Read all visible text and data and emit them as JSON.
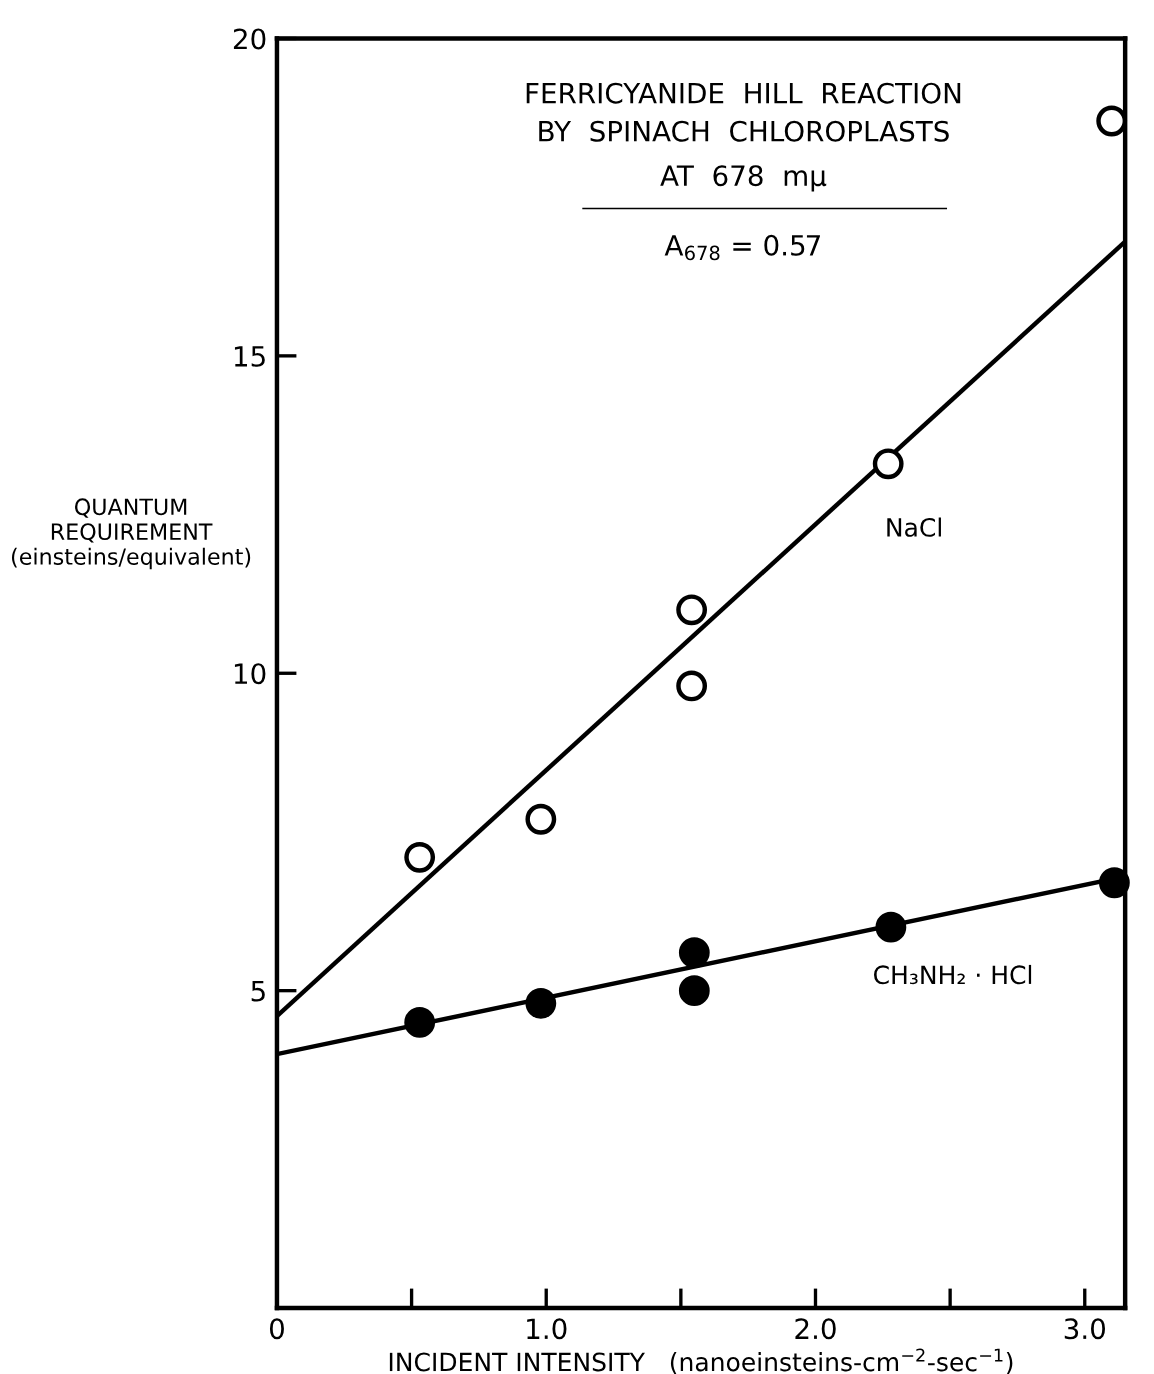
{
  "chart_data": {
    "type": "scatter",
    "xlabel": "INCIDENT INTENSITY   (nanoeinsteins-cm$^{−2}$-sec$^{−1}$)",
    "ylabel": "QUANTUM\nREQUIREMENT\n(einsteins/equivalent)",
    "annotations": [
      "FERRICYANIDE  HILL  REACTION",
      "BY  SPINACH  CHLOROPLASTS",
      "AT  678  mμ",
      "A$_{678}$ = 0.57"
    ],
    "series": [
      {
        "name": "NaCl",
        "color": "#ffffff",
        "x": [
          0.53,
          0.98,
          1.54,
          1.54,
          2.27,
          3.1
        ],
        "values": [
          7.1,
          7.7,
          11.0,
          9.8,
          13.3,
          18.7
        ]
      },
      {
        "name": "CH₃NH₂ · HCl",
        "color": "#000000",
        "x": [
          0.53,
          0.98,
          1.55,
          1.55,
          2.28,
          3.11
        ],
        "values": [
          4.5,
          4.8,
          5.6,
          5.0,
          6.0,
          6.7
        ]
      },
      {
        "type": "line",
        "marker": "none",
        "color": "#000000",
        "x": [
          0,
          3.15
        ],
        "values": [
          4.6,
          16.8
        ]
      },
      {
        "type": "line",
        "marker": "none",
        "color": "#000000",
        "x": [
          0,
          3.15
        ],
        "values": [
          4.0,
          6.8
        ]
      }
    ],
    "marker": "circle",
    "xlim": [
      0,
      3.15
    ],
    "ylim": [
      0,
      20
    ],
    "xticks": [
      0,
      {
        "value": 0.5,
        "label": null
      },
      {
        "value": 1,
        "label": "1.0"
      },
      {
        "value": 1.5,
        "label": null
      },
      {
        "value": 2,
        "label": "2.0"
      },
      {
        "value": 2.5,
        "label": null
      },
      {
        "value": 3,
        "label": "3.0"
      }
    ],
    "yticks": [
      {
        "value": 0,
        "label": null
      },
      5,
      10,
      15,
      20
    ],
    "grid": false
  }
}
